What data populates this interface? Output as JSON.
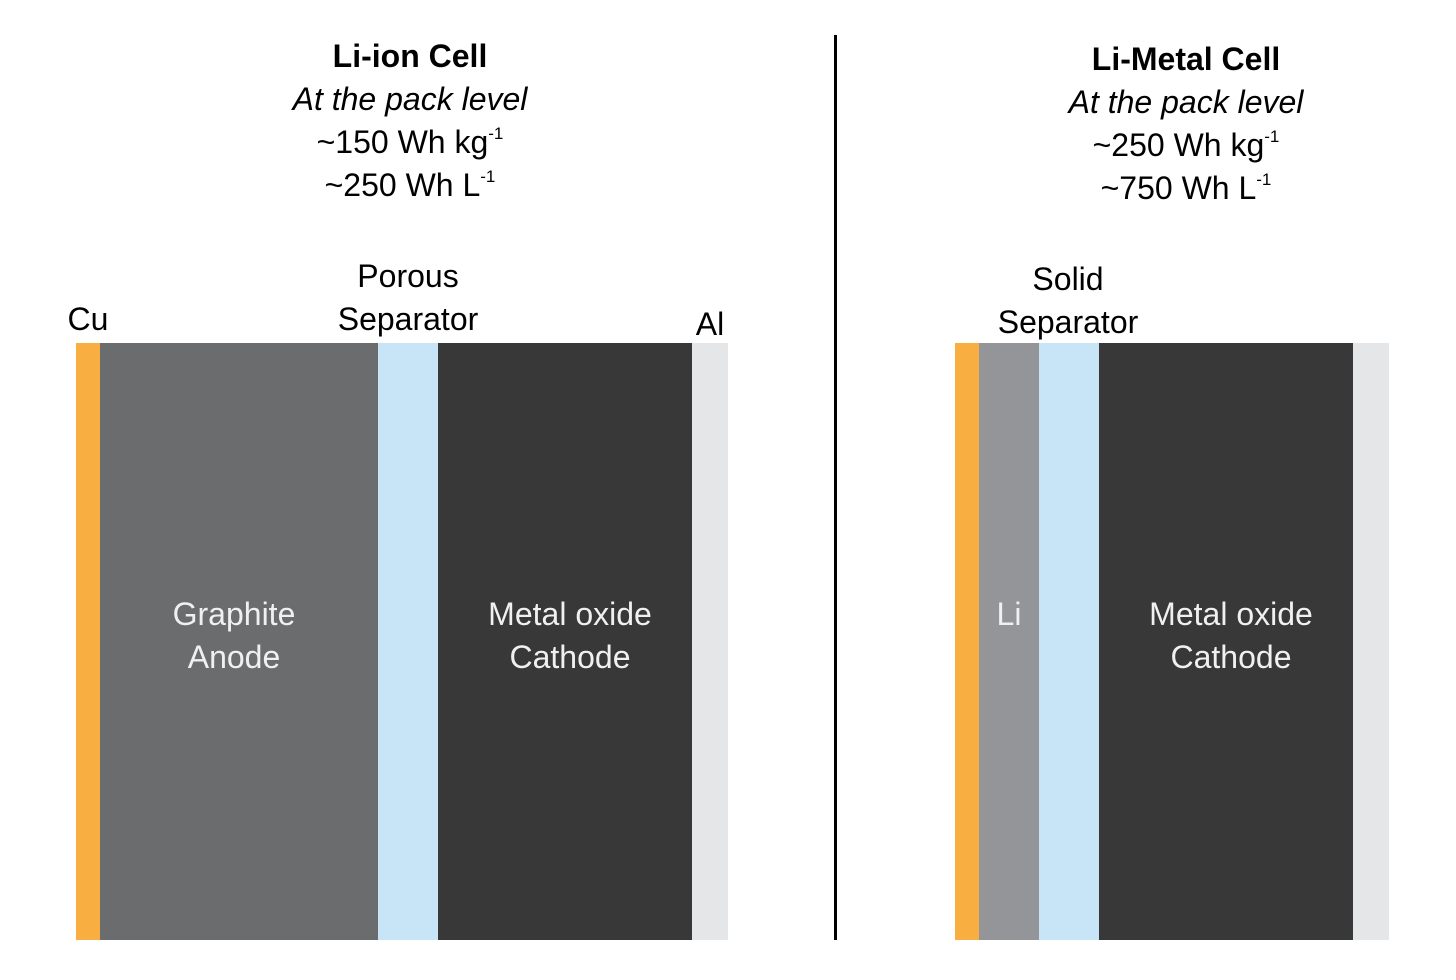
{
  "colors": {
    "copper": "#F9AE41",
    "graphite": "#6B6C6E",
    "separator": "#C7E5F6",
    "cathode": "#383838",
    "aluminum": "#E5E6E7",
    "lithium": "#939598",
    "inner_text": "#F0F0F0"
  },
  "left": {
    "title": "Li-ion Cell",
    "subtitle": "At the pack level",
    "energy_kg": {
      "value": "~150 Wh kg",
      "sup": "-1"
    },
    "energy_l": {
      "value": "~250 Wh L",
      "sup": "-1"
    },
    "labels": {
      "cu": "Cu",
      "separator_line1": "Porous",
      "separator_line2": "Separator",
      "al": "Al"
    },
    "anode": {
      "line1": "Graphite",
      "line2": "Anode"
    },
    "cathode": {
      "line1": "Metal oxide",
      "line2": "Cathode"
    }
  },
  "right": {
    "title": "Li-Metal Cell",
    "subtitle": "At the pack level",
    "energy_kg": {
      "value": "~250 Wh kg",
      "sup": "-1"
    },
    "energy_l": {
      "value": "~750 Wh L",
      "sup": "-1"
    },
    "labels": {
      "separator_line1": "Solid",
      "separator_line2": "Separator"
    },
    "anode": {
      "line1": "Li"
    },
    "cathode": {
      "line1": "Metal oxide",
      "line2": "Cathode"
    }
  }
}
